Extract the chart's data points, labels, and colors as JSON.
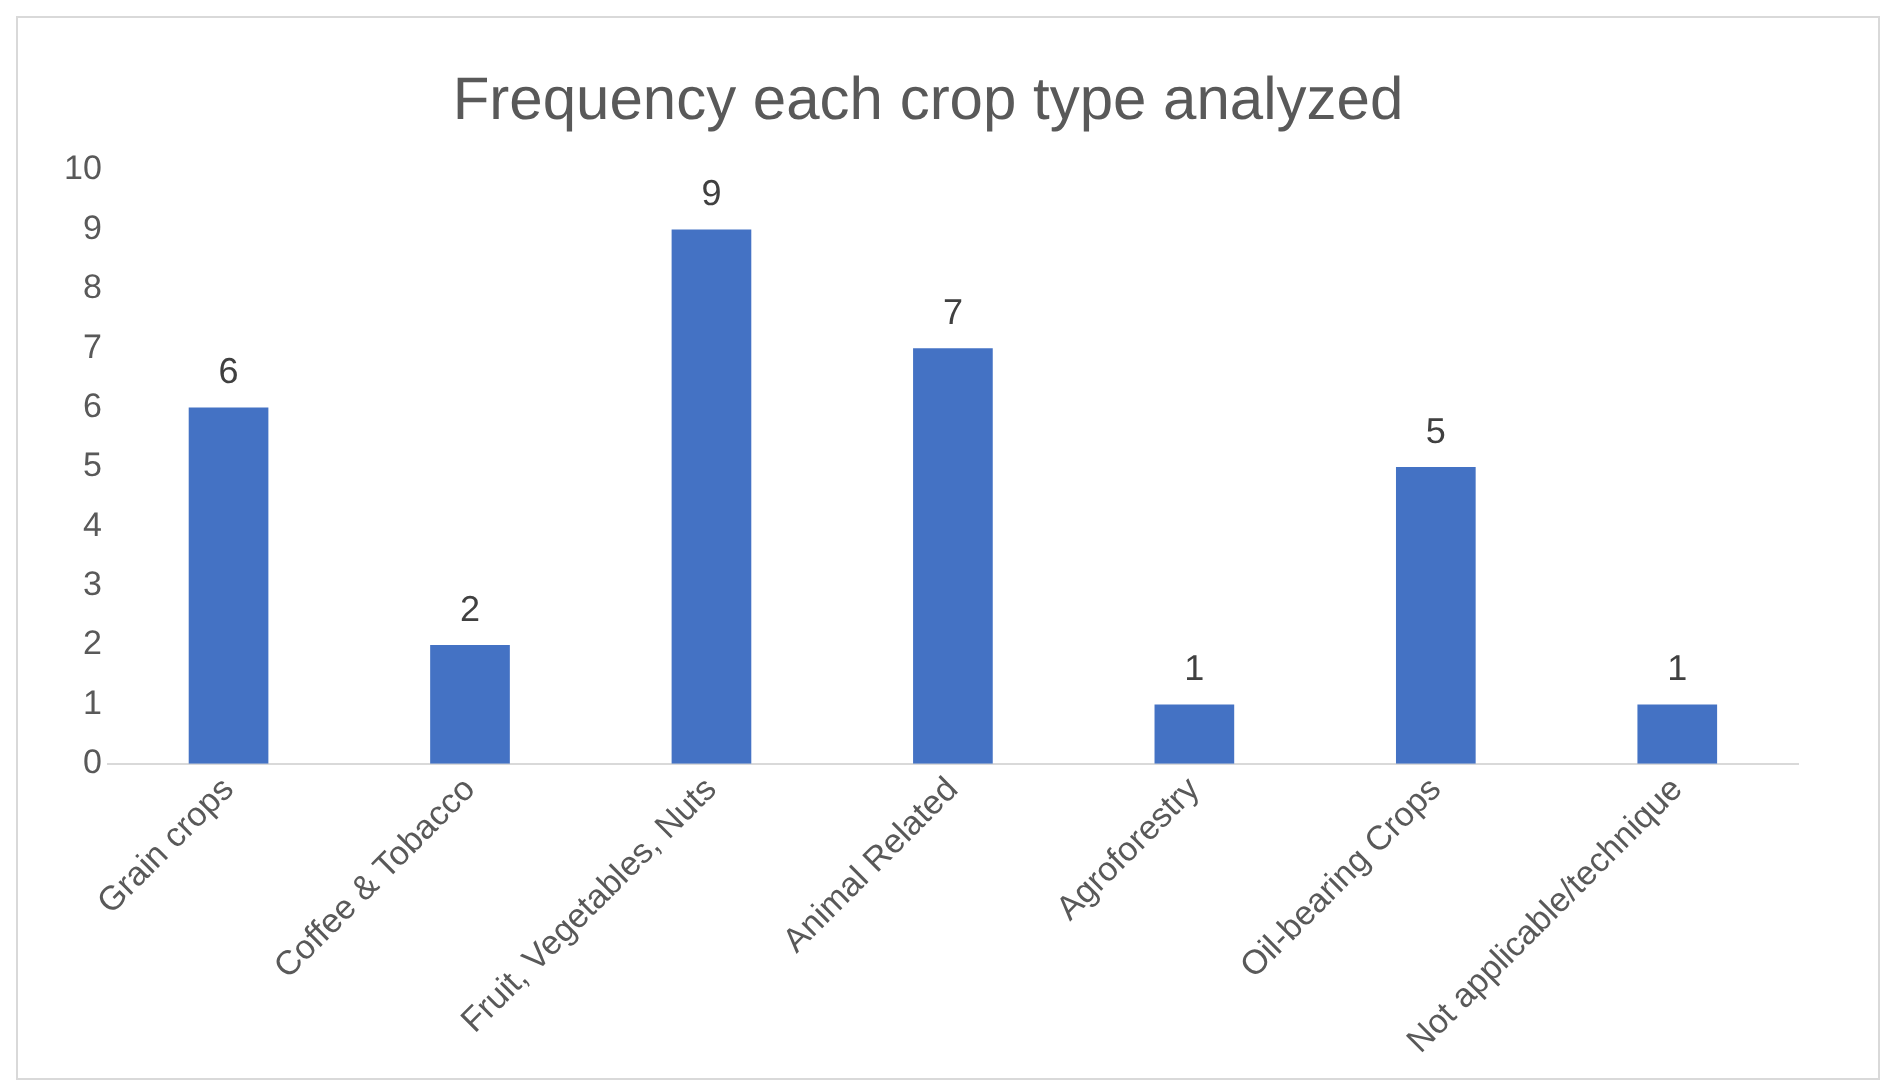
{
  "chart_data": {
    "type": "bar",
    "title": "Frequency each crop type analyzed",
    "categories": [
      "Grain crops",
      "Coffee & Tobacco",
      "Fruit, Vegetables, Nuts",
      "Animal Related",
      "Agroforestry",
      "Oil-bearing Crops",
      "Not applicable/technique"
    ],
    "values": [
      6,
      2,
      9,
      7,
      1,
      5,
      1
    ],
    "color": "#4472c4",
    "ylim": [
      0,
      10
    ],
    "yticks": [
      0,
      1,
      2,
      3,
      4,
      5,
      6,
      7,
      8,
      9,
      10
    ],
    "grid": false,
    "legend": false,
    "data_labels": true
  }
}
